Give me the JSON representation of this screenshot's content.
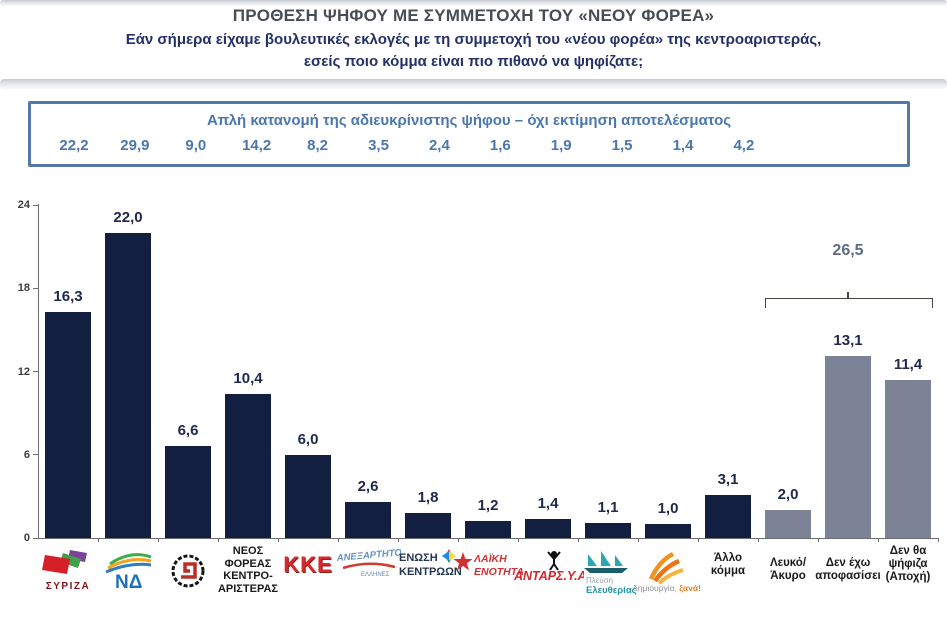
{
  "header": {
    "title": "ΠΡΟΘΕΣΗ ΨΗΦΟΥ ΜΕ ΣΥΜΜΕΤΟΧΗ ΤΟΥ «ΝΕΟΥ ΦΟΡΕΑ»",
    "subtitle_line1": "Εάν σήμερα είχαμε βουλευτικές εκλογές με τη συμμετοχή του «νέου φορέα» της κεντροαριστεράς,",
    "subtitle_line2": "εσείς ποιο κόμμα είναι πιο πιθανό να ψηφίζατε;"
  },
  "info_box": {
    "title": "Απλή κατανομή της αδιευκρίνιστης ψήφου – όχι εκτίμηση αποτελέσματος",
    "values": [
      "22,2",
      "29,9",
      "9,0",
      "14,2",
      "8,2",
      "3,5",
      "2,4",
      "1,6",
      "1,9",
      "1,5",
      "1,4",
      "4,2"
    ]
  },
  "chart_data": {
    "type": "bar",
    "ylim": [
      0,
      24
    ],
    "yticks": [
      0,
      6,
      12,
      18,
      24
    ],
    "grid": false,
    "unit": "percent",
    "bar_color_party": "#121f40",
    "bar_color_undecided": "#7d8396",
    "categories": [
      "ΣΥΡΙΖΑ",
      "ΝΔ",
      "ΧΡΥΣΗ ΑΥΓΗ",
      "ΝΕΟΣ ΦΟΡΕΑΣ ΚΕΝΤΡΟΑΡΙΣΤΕΡΑΣ",
      "ΚΚΕ",
      "ΑΝΕΞΑΡΤΗΤΟΙ ΕΛΛΗΝΕΣ",
      "ΕΝΩΣΗ ΚΕΝΤΡΩΩΝ",
      "ΛΑΪΚΗ ΕΝΟΤΗΤΑ",
      "ΑΝΤΑΡΣΥΑ",
      "ΠΛΕΥΣΗ ΕΛΕΥΘΕΡΙΑΣ",
      "ΔΗΜΙΟΥΡΓΙΑ ΞΑΝΑ",
      "Άλλο κόμμα",
      "Λευκό/ Άκυρο",
      "Δεν έχω αποφασίσει",
      "Δεν θα ψήφιζα (Αποχή)"
    ],
    "values": [
      16.3,
      22.0,
      6.6,
      10.4,
      6.0,
      2.6,
      1.8,
      1.2,
      1.4,
      1.1,
      1.0,
      3.1,
      2.0,
      13.1,
      11.4
    ],
    "bars": [
      {
        "category": "ΣΥΡΙΖΑ",
        "value": 16.3,
        "display": "16,3",
        "group": "party",
        "logo": "syriza"
      },
      {
        "category": "ΝΔ",
        "value": 22.0,
        "display": "22,0",
        "group": "party",
        "logo": "nd"
      },
      {
        "category": "ΧΡΥΣΗ ΑΥΓΗ",
        "value": 6.6,
        "display": "6,6",
        "group": "party",
        "logo": "xa"
      },
      {
        "category": "ΝΕΟΣ ΦΟΡΕΑΣ ΚΕΝΤΡΟΑΡΙΣΤΕΡΑΣ",
        "value": 10.4,
        "display": "10,4",
        "group": "party",
        "label_lines": [
          "ΝΕΟΣ",
          "ΦΟΡΕΑΣ",
          "ΚΕΝΤΡΟ-",
          "ΑΡΙΣΤΕΡΑΣ"
        ],
        "small": true
      },
      {
        "category": "ΚΚΕ",
        "value": 6.0,
        "display": "6,0",
        "group": "party",
        "logo": "kke"
      },
      {
        "category": "ΑΝΕΞΑΡΤΗΤΟΙ ΕΛΛΗΝΕΣ",
        "value": 2.6,
        "display": "2,6",
        "group": "party",
        "logo": "anel"
      },
      {
        "category": "ΕΝΩΣΗ ΚΕΝΤΡΩΩΝ",
        "value": 1.8,
        "display": "1,8",
        "group": "party",
        "logo": "ek"
      },
      {
        "category": "ΛΑΪΚΗ ΕΝΟΤΗΤΑ",
        "value": 1.2,
        "display": "1,2",
        "group": "party",
        "logo": "le"
      },
      {
        "category": "ΑΝΤΑΡΣΥΑ",
        "value": 1.4,
        "display": "1,4",
        "group": "party",
        "logo": "antarsya"
      },
      {
        "category": "ΠΛΕΥΣΗ ΕΛΕΥΘΕΡΙΑΣ",
        "value": 1.1,
        "display": "1,1",
        "group": "party",
        "logo": "plefsi"
      },
      {
        "category": "ΔΗΜΙΟΥΡΓΙΑ ΞΑΝΑ",
        "value": 1.0,
        "display": "1,0",
        "group": "party",
        "logo": "dx"
      },
      {
        "category": "Άλλο κόμμα",
        "value": 3.1,
        "display": "3,1",
        "group": "party",
        "label_lines": [
          "Άλλο",
          "κόμμα"
        ],
        "pad": 7
      },
      {
        "category": "Λευκό/ Άκυρο",
        "value": 2.0,
        "display": "2,0",
        "group": "undecided",
        "label_lines": [
          "Λευκό/",
          "Άκυρο"
        ],
        "pad": 12
      },
      {
        "category": "Δεν έχω αποφασίσει",
        "value": 13.1,
        "display": "13,1",
        "group": "undecided",
        "label_lines": [
          "Δεν έχω",
          "αποφασίσει"
        ],
        "pad": 12
      },
      {
        "category": "Δεν θα ψήφιζα (Αποχή)",
        "value": 11.4,
        "display": "11,4",
        "group": "undecided",
        "label_lines": [
          "Δεν θα",
          "ψήφιζα",
          "(Αποχή)"
        ],
        "pad": 0
      }
    ],
    "annotation": {
      "label": "26,5",
      "value": 26.5,
      "spans_categories": [
        "Λευκό/ Άκυρο",
        "Δεν έχω αποφασίσει",
        "Δεν θα ψήφιζα (Αποχή)"
      ]
    }
  }
}
